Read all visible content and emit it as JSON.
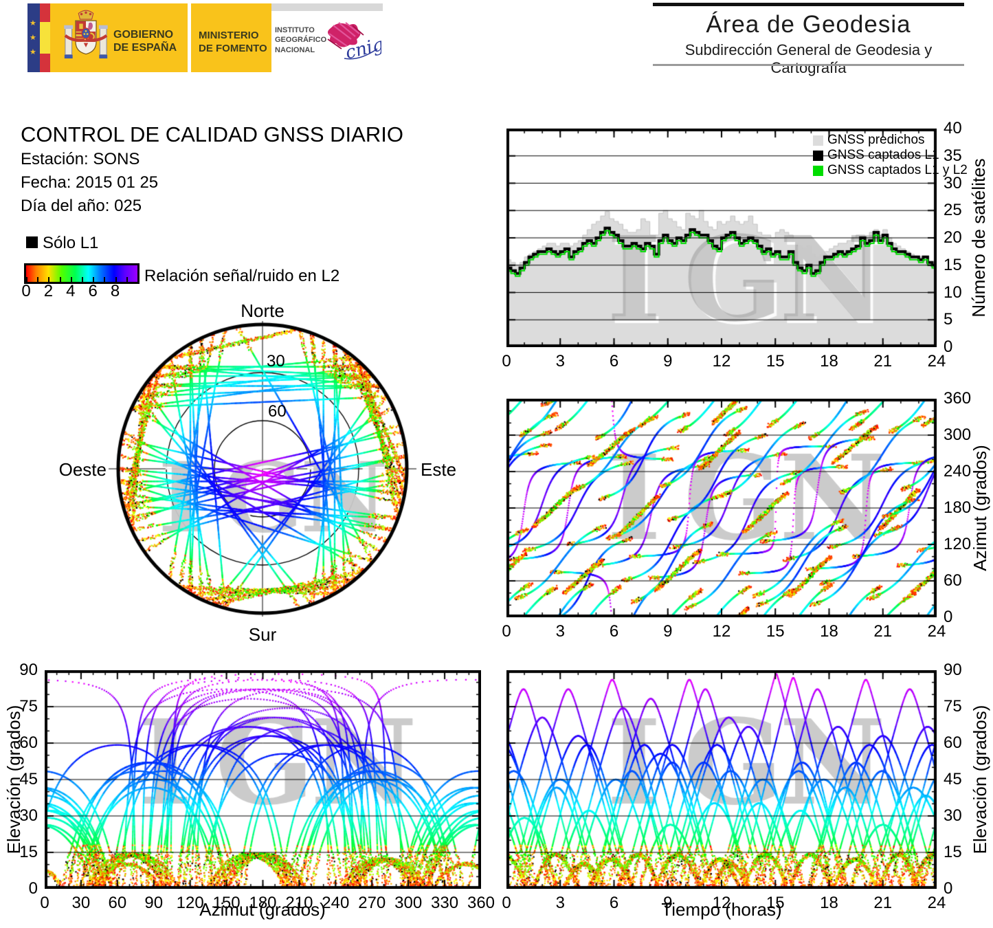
{
  "header": {
    "gobierno_line1": "GOBIERNO",
    "gobierno_line2": "DE ESPAÑA",
    "ministerio_line1": "MINISTERIO",
    "ministerio_line2": "DE FOMENTO",
    "instituto_line1": "INSTITUTO",
    "instituto_line2": "GEOGRÁFICO",
    "instituto_line3": "NACIONAL",
    "cnig_label": "cnig",
    "area_title": "Área de Geodesia",
    "area_subtitle": "Subdirección General de Geodesia y Cartografía"
  },
  "info": {
    "title": "CONTROL DE CALIDAD GNSS DIARIO",
    "station_label": "Estación: SONS",
    "date_label": "Fecha: 2015 01 25",
    "doy_label": "Día del año: 025"
  },
  "legend": {
    "solo_l1": "Sólo L1"
  },
  "watermark": "IGN",
  "chart_data": {
    "colorbar": {
      "title": "Relación señal/ruido en L2",
      "tick_labels": [
        0,
        2,
        4,
        6,
        8
      ],
      "range": [
        0,
        9
      ],
      "color_scale": "rainbow red(0) → orange → yellow → green → cyan → blue → violet(9)"
    },
    "satellite_count": {
      "type": "area",
      "ylabel": "Número de satélites",
      "xlim": [
        0,
        24
      ],
      "ylim": [
        0,
        40
      ],
      "xticks": [
        0,
        3,
        6,
        9,
        12,
        15,
        18,
        21,
        24
      ],
      "yticks": [
        0,
        5,
        10,
        15,
        20,
        25,
        30,
        35,
        40
      ],
      "x_step_hours": 0.25,
      "series": [
        {
          "name": "GNSS predichos",
          "color": "#dcdcdc",
          "values": [
            16,
            15.5,
            15,
            15.5,
            16.5,
            17,
            17.5,
            18,
            18.5,
            19,
            19,
            18.5,
            19,
            19,
            18.5,
            19,
            19.5,
            20.5,
            21.5,
            22.5,
            23,
            24,
            24.8,
            23.5,
            23,
            22.5,
            21.5,
            21,
            21,
            21.5,
            23.5,
            23,
            20.5,
            20.5,
            24.5,
            25,
            23.5,
            23,
            22,
            21.5,
            24.5,
            24,
            23.5,
            25,
            23,
            22,
            21.5,
            23,
            22.5,
            23,
            24,
            23,
            22.5,
            23,
            24,
            22.5,
            21,
            20.5,
            20.5,
            20,
            21,
            21.5,
            21,
            20.5,
            19,
            18.5,
            18,
            18.5,
            17,
            16.5,
            17,
            17.5,
            18,
            18.5,
            19,
            19,
            19.5,
            20,
            20.5,
            20.5,
            20,
            21,
            21.5,
            20.5,
            21.5,
            20,
            19,
            18.5,
            18,
            17.5,
            17,
            16.5,
            16.5,
            16,
            15.5,
            15.5,
            15.5
          ]
        },
        {
          "name": "GNSS captados L1",
          "color": "#000000",
          "values": [
            14.5,
            14,
            13.5,
            14.5,
            15.5,
            16.5,
            17,
            17.5,
            17.5,
            18,
            17.5,
            17,
            17.5,
            18,
            16.5,
            17.5,
            18,
            19,
            19.5,
            19,
            20,
            21,
            21.8,
            21,
            20.5,
            19.5,
            18.5,
            18.5,
            19,
            18.5,
            18,
            19,
            18.5,
            17,
            19.5,
            20.5,
            19.5,
            19,
            20,
            19.5,
            20.5,
            21.5,
            21,
            20.5,
            20.5,
            19.5,
            18.5,
            18,
            20,
            20.5,
            21,
            20,
            19,
            19.5,
            20,
            19.5,
            18.5,
            17.5,
            18,
            17,
            17.5,
            16.5,
            16.5,
            17.5,
            15.5,
            14.5,
            14,
            15,
            13.5,
            14,
            15.5,
            16.5,
            16.5,
            17,
            17.5,
            17,
            17.5,
            18,
            18.5,
            20,
            19,
            19.5,
            21,
            19.5,
            20.5,
            19,
            18,
            17.5,
            17.5,
            17,
            16.5,
            16.5,
            16,
            16.5,
            15.5,
            15,
            15
          ]
        },
        {
          "name": "GNSS captados L1 y L2",
          "color": "#00dd00",
          "values": [
            14,
            13.5,
            13,
            14,
            15,
            16,
            16.5,
            17,
            17,
            17.5,
            17,
            16.5,
            17,
            17.5,
            16,
            17,
            17.5,
            18.5,
            19,
            18.5,
            19.5,
            20.5,
            21.3,
            20.5,
            20,
            19,
            18,
            18,
            18.5,
            18,
            17.5,
            18.5,
            18,
            16.5,
            19,
            20,
            19,
            18.5,
            19.5,
            19,
            20,
            21,
            20.5,
            20,
            20,
            19,
            18,
            17.5,
            19.5,
            20,
            20.5,
            19.5,
            18.5,
            19,
            19.5,
            19,
            18,
            17,
            17.5,
            16.5,
            17,
            16,
            16,
            17,
            15,
            14,
            13.5,
            14.5,
            13,
            13.5,
            15,
            16,
            16,
            16.5,
            17,
            16.5,
            17,
            17.5,
            18,
            19.5,
            18.5,
            19,
            20.5,
            19,
            20,
            18.5,
            17.5,
            17,
            17,
            16.5,
            16,
            16,
            15.5,
            16,
            15,
            14.5,
            14.5
          ]
        }
      ]
    },
    "skyplot": {
      "type": "scatter",
      "projection": "polar-azimuthal",
      "rings_deg": [
        30,
        60
      ],
      "cardinal": {
        "n": "Norte",
        "s": "Sur",
        "e": "Este",
        "w": "Oeste"
      }
    },
    "azimuth_time": {
      "type": "scatter",
      "ylabel": "Azimut (grados)",
      "xlim": [
        0,
        24
      ],
      "ylim": [
        0,
        360
      ],
      "xticks": [
        0,
        3,
        6,
        9,
        12,
        15,
        18,
        21,
        24
      ],
      "yticks": [
        0,
        60,
        120,
        180,
        240,
        300,
        360
      ]
    },
    "elevation_azimuth": {
      "type": "scatter",
      "xlabel": "Azimut (grados)",
      "ylabel": "Elevación (grados)",
      "xlim": [
        0,
        360
      ],
      "ylim": [
        0,
        90
      ],
      "xticks": [
        0,
        30,
        60,
        90,
        120,
        150,
        180,
        210,
        240,
        270,
        300,
        330,
        360
      ],
      "yticks": [
        0,
        15,
        30,
        45,
        60,
        75,
        90
      ]
    },
    "elevation_time": {
      "type": "scatter",
      "xlabel": "Tiempo (horas)",
      "ylabel": "Elevación (grados)",
      "xlim": [
        0,
        24
      ],
      "ylim": [
        0,
        90
      ],
      "xticks": [
        0,
        3,
        6,
        9,
        12,
        15,
        18,
        21,
        24
      ],
      "yticks": [
        0,
        15,
        30,
        45,
        60,
        75,
        90
      ]
    },
    "satellite_passes": {
      "format": [
        "start_hour",
        "duration_hours",
        "rise_azimuth_deg",
        "set_azimuth_deg"
      ],
      "color_rule": "point color encodes L2 S/N (~elevation): 0=red → 9=violet/magenta; black dots = L1 only",
      "passes": [
        [
          0.2,
          6.5,
          95,
          265
        ],
        [
          1.0,
          6.0,
          110,
          255
        ],
        [
          2.5,
          6.8,
          75,
          260
        ],
        [
          3.4,
          6.2,
          120,
          280
        ],
        [
          4.8,
          6.5,
          85,
          250
        ],
        [
          5.6,
          6.0,
          130,
          265
        ],
        [
          6.9,
          6.6,
          100,
          275
        ],
        [
          8.0,
          6.2,
          65,
          235
        ],
        [
          9.2,
          6.4,
          115,
          270
        ],
        [
          10.5,
          6.0,
          90,
          240
        ],
        [
          11.8,
          6.5,
          104,
          282
        ],
        [
          13.0,
          6.0,
          72,
          248
        ],
        [
          14.2,
          6.3,
          125,
          295
        ],
        [
          15.5,
          6.0,
          95,
          245
        ],
        [
          16.8,
          6.5,
          80,
          255
        ],
        [
          18.0,
          6.0,
          115,
          260
        ],
        [
          19.3,
          6.4,
          100,
          270
        ],
        [
          20.5,
          6.0,
          135,
          285
        ],
        [
          21.8,
          6.3,
          85,
          255
        ],
        [
          23.0,
          6.0,
          110,
          265
        ],
        [
          0.5,
          5.0,
          30,
          150
        ],
        [
          2.0,
          5.0,
          350,
          130
        ],
        [
          3.8,
          4.6,
          210,
          330
        ],
        [
          5.2,
          5.0,
          195,
          335
        ],
        [
          7.0,
          4.5,
          25,
          155
        ],
        [
          8.6,
          4.8,
          215,
          345
        ],
        [
          10.0,
          5.0,
          15,
          140
        ],
        [
          12.0,
          4.6,
          200,
          320
        ],
        [
          13.8,
          5.0,
          35,
          160
        ],
        [
          15.3,
          4.8,
          220,
          340
        ],
        [
          17.0,
          5.0,
          20,
          150
        ],
        [
          18.6,
          4.7,
          205,
          330
        ],
        [
          20.2,
          5.0,
          30,
          145
        ],
        [
          22.0,
          4.8,
          210,
          335
        ],
        [
          0.8,
          4.0,
          300,
          55
        ],
        [
          2.8,
          3.6,
          310,
          50
        ],
        [
          5.0,
          4.0,
          295,
          60
        ],
        [
          7.4,
          3.5,
          315,
          45
        ],
        [
          9.6,
          4.0,
          305,
          50
        ],
        [
          12.2,
          3.8,
          300,
          45
        ],
        [
          14.6,
          3.6,
          315,
          55
        ],
        [
          16.9,
          4.0,
          295,
          50
        ],
        [
          19.2,
          3.6,
          310,
          40
        ],
        [
          21.4,
          4.0,
          305,
          55
        ],
        [
          23.2,
          3.6,
          315,
          50
        ],
        [
          1.5,
          2.5,
          150,
          215
        ],
        [
          3.2,
          2.2,
          40,
          95
        ],
        [
          4.6,
          2.5,
          250,
          310
        ],
        [
          6.2,
          2.3,
          135,
          200
        ],
        [
          8.3,
          2.5,
          45,
          110
        ],
        [
          10.8,
          2.2,
          245,
          305
        ],
        [
          13.2,
          2.5,
          140,
          205
        ],
        [
          15.8,
          2.3,
          35,
          100
        ],
        [
          18.2,
          2.5,
          255,
          315
        ],
        [
          20.8,
          2.2,
          145,
          210
        ],
        [
          22.6,
          2.5,
          40,
          105
        ],
        [
          11.5,
          2.0,
          320,
          15
        ],
        [
          6.5,
          5.5,
          60,
          200
        ],
        [
          9.0,
          5.5,
          160,
          300
        ],
        [
          17.5,
          5.5,
          55,
          195
        ],
        [
          21.0,
          5.5,
          165,
          305
        ],
        [
          14.0,
          5.0,
          20,
          150
        ]
      ]
    }
  }
}
